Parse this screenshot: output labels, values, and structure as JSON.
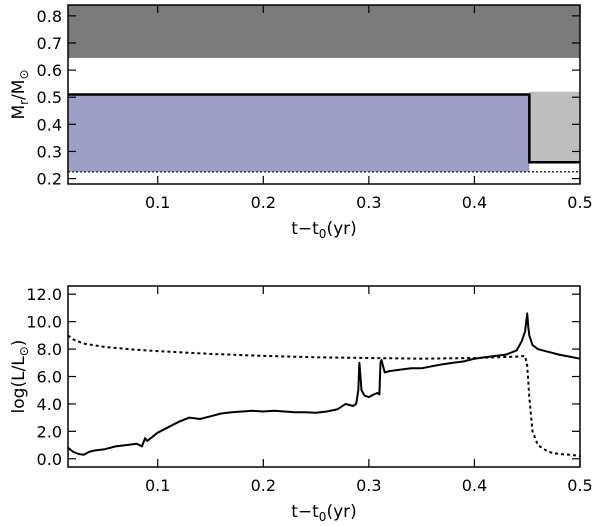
{
  "chart_data": [
    {
      "type": "area",
      "xlabel": "t−t",
      "xlabel_sub": "0",
      "xlabel_tail": "(yr)",
      "ylabel": "M",
      "ylabel_sub": "r",
      "ylabel_mid": "/M",
      "ylabel_sub2": "⊙",
      "xlim": [
        0.015,
        0.5
      ],
      "ylim": [
        0.18,
        0.84
      ],
      "xticks": [
        "0.1",
        "0.2",
        "0.3",
        "0.4",
        "0.5"
      ],
      "xtick_values": [
        0.1,
        0.2,
        0.3,
        0.4,
        0.5
      ],
      "yticks": [
        "0.2",
        "0.3",
        "0.4",
        "0.5",
        "0.6",
        "0.7",
        "0.8"
      ],
      "ytick_values": [
        0.2,
        0.3,
        0.4,
        0.5,
        0.6,
        0.7,
        0.8
      ],
      "regions": [
        {
          "x": [
            0.015,
            0.5
          ],
          "y": [
            0.645,
            0.84
          ],
          "color": "#7a7a7a"
        },
        {
          "x": [
            0.015,
            0.452
          ],
          "y": [
            0.225,
            0.51
          ],
          "color": "#9e9fc6"
        },
        {
          "x": [
            0.452,
            0.5
          ],
          "y": [
            0.26,
            0.52
          ],
          "color": "#bebebe"
        }
      ],
      "boundary_line": {
        "x": [
          0.015,
          0.452,
          0.452,
          0.5
        ],
        "y": [
          0.51,
          0.51,
          0.26,
          0.26
        ]
      },
      "dotted_line_y": 0.225,
      "grid": false
    },
    {
      "type": "line",
      "xlabel": "t−t",
      "xlabel_sub": "0",
      "xlabel_tail": "(yr)",
      "ylabel": "log(L/L",
      "ylabel_sub": "⊙",
      "ylabel_tail": ")",
      "xlim": [
        0.015,
        0.5
      ],
      "ylim": [
        -0.6,
        12.6
      ],
      "xticks": [
        "0.1",
        "0.2",
        "0.3",
        "0.4",
        "0.5"
      ],
      "xtick_values": [
        0.1,
        0.2,
        0.3,
        0.4,
        0.5
      ],
      "yticks": [
        "0.0",
        "2.0",
        "4.0",
        "6.0",
        "8.0",
        "10.0",
        "12.0"
      ],
      "ytick_values": [
        0,
        2,
        4,
        6,
        8,
        10,
        12
      ],
      "series": [
        {
          "style": "solid",
          "x": [
            0.015,
            0.02,
            0.025,
            0.03,
            0.035,
            0.04,
            0.05,
            0.06,
            0.07,
            0.08,
            0.085,
            0.088,
            0.09,
            0.1,
            0.11,
            0.12,
            0.13,
            0.14,
            0.15,
            0.16,
            0.17,
            0.18,
            0.19,
            0.2,
            0.21,
            0.22,
            0.23,
            0.24,
            0.25,
            0.26,
            0.27,
            0.278,
            0.285,
            0.288,
            0.29,
            0.291,
            0.293,
            0.296,
            0.3,
            0.305,
            0.308,
            0.31,
            0.311,
            0.312,
            0.315,
            0.32,
            0.33,
            0.34,
            0.35,
            0.36,
            0.37,
            0.38,
            0.39,
            0.4,
            0.41,
            0.42,
            0.43,
            0.44,
            0.445,
            0.448,
            0.45,
            0.451,
            0.452,
            0.455,
            0.46,
            0.47,
            0.48,
            0.49,
            0.5
          ],
          "y": [
            0.8,
            0.5,
            0.35,
            0.3,
            0.5,
            0.6,
            0.7,
            0.9,
            1.0,
            1.1,
            0.9,
            1.5,
            1.3,
            1.9,
            2.3,
            2.7,
            3.0,
            2.9,
            3.1,
            3.3,
            3.4,
            3.45,
            3.5,
            3.45,
            3.5,
            3.45,
            3.4,
            3.4,
            3.35,
            3.45,
            3.6,
            4.0,
            3.85,
            4.0,
            5.0,
            7.0,
            5.0,
            4.6,
            4.5,
            4.7,
            4.8,
            4.7,
            7.0,
            7.2,
            6.3,
            6.4,
            6.5,
            6.6,
            6.6,
            6.75,
            6.9,
            7.0,
            7.1,
            7.3,
            7.4,
            7.5,
            7.6,
            7.9,
            8.6,
            9.3,
            10.6,
            9.6,
            9.0,
            8.3,
            8.0,
            7.8,
            7.6,
            7.45,
            7.3
          ]
        },
        {
          "style": "dotted",
          "x": [
            0.015,
            0.02,
            0.03,
            0.05,
            0.08,
            0.1,
            0.15,
            0.2,
            0.25,
            0.3,
            0.35,
            0.4,
            0.44,
            0.448,
            0.45,
            0.452,
            0.455,
            0.46,
            0.47,
            0.48,
            0.49,
            0.5
          ],
          "y": [
            9.0,
            8.7,
            8.4,
            8.15,
            7.95,
            7.85,
            7.65,
            7.5,
            7.4,
            7.35,
            7.3,
            7.35,
            7.45,
            7.5,
            6.8,
            4.5,
            2.0,
            1.0,
            0.5,
            0.35,
            0.3,
            0.2
          ]
        }
      ],
      "grid": false
    }
  ]
}
